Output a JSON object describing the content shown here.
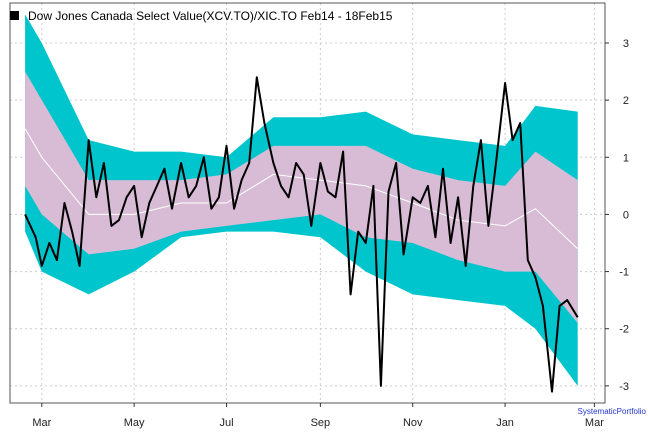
{
  "chart_data": {
    "type": "line",
    "title": "Dow Jones Canada Select Value(XCV.TO)/XIC.TO Feb14 - 18Feb15",
    "credit": "SystematicPortfolio",
    "x_tick_labels": [
      "Mar",
      "May",
      "Jul",
      "Sep",
      "Nov",
      "Jan",
      "Mar"
    ],
    "y_tick_labels": [
      "3",
      "2",
      "1",
      "0",
      "-1",
      "-2",
      "-3"
    ],
    "y_ticks": [
      3,
      2,
      1,
      0,
      -1,
      -2,
      -3
    ],
    "ylim": [
      -3.3,
      3.7
    ],
    "grid": true,
    "legend_position": "top-left",
    "colors": {
      "outer_band": "#00c5cd",
      "inner_band": "#d8bcd6",
      "mean_line": "#ffffff",
      "series_line": "#000000",
      "grid": "#cccccc"
    },
    "date_range": [
      "2014-02-18",
      "2015-02-18"
    ],
    "x_axis_range": [
      "2014-02-08",
      "2015-03-08"
    ],
    "x_tick_dates": [
      "2014-03-01",
      "2014-05-01",
      "2014-07-01",
      "2014-09-01",
      "2014-11-01",
      "2015-01-01",
      "2015-03-01"
    ],
    "series": [
      {
        "role": "z-score",
        "x": [
          "2014-02-18",
          "2014-02-25",
          "2014-03-01",
          "2014-03-06",
          "2014-03-11",
          "2014-03-16",
          "2014-03-21",
          "2014-03-26",
          "2014-04-01",
          "2014-04-06",
          "2014-04-11",
          "2014-04-16",
          "2014-04-21",
          "2014-04-26",
          "2014-05-01",
          "2014-05-06",
          "2014-05-11",
          "2014-05-16",
          "2014-05-21",
          "2014-05-26",
          "2014-06-01",
          "2014-06-06",
          "2014-06-11",
          "2014-06-16",
          "2014-06-21",
          "2014-06-26",
          "2014-07-01",
          "2014-07-06",
          "2014-07-11",
          "2014-07-16",
          "2014-07-21",
          "2014-07-26",
          "2014-08-01",
          "2014-08-06",
          "2014-08-11",
          "2014-08-16",
          "2014-08-21",
          "2014-08-26",
          "2014-09-01",
          "2014-09-06",
          "2014-09-11",
          "2014-09-16",
          "2014-09-21",
          "2014-09-26",
          "2014-10-01",
          "2014-10-06",
          "2014-10-11",
          "2014-10-16",
          "2014-10-21",
          "2014-10-26",
          "2014-11-01",
          "2014-11-06",
          "2014-11-11",
          "2014-11-16",
          "2014-11-21",
          "2014-11-26",
          "2014-12-01",
          "2014-12-06",
          "2014-12-11",
          "2014-12-16",
          "2014-12-21",
          "2014-12-26",
          "2015-01-01",
          "2015-01-06",
          "2015-01-11",
          "2015-01-16",
          "2015-01-21",
          "2015-01-26",
          "2015-02-01",
          "2015-02-06",
          "2015-02-11",
          "2015-02-18"
        ],
        "values": [
          0.0,
          -0.4,
          -0.9,
          -0.5,
          -0.8,
          0.2,
          -0.3,
          -0.9,
          1.3,
          0.3,
          0.9,
          -0.2,
          -0.1,
          0.3,
          0.5,
          -0.4,
          0.2,
          0.5,
          0.8,
          0.1,
          0.9,
          0.3,
          0.5,
          1.0,
          0.1,
          0.3,
          1.2,
          0.1,
          0.6,
          0.9,
          2.4,
          1.6,
          0.9,
          0.5,
          0.3,
          0.9,
          0.7,
          -0.2,
          0.9,
          0.4,
          0.3,
          1.1,
          -1.4,
          -0.3,
          -0.5,
          0.5,
          -3.0,
          0.4,
          0.9,
          -0.7,
          0.3,
          0.2,
          0.5,
          -0.4,
          0.8,
          -0.5,
          0.3,
          -0.9,
          0.5,
          1.3,
          -0.2,
          0.9,
          2.3,
          1.3,
          1.6,
          -0.8,
          -1.1,
          -1.6,
          -3.1,
          -1.6,
          -1.5,
          -1.8
        ]
      },
      {
        "role": "outer-upper",
        "x": [
          "2014-02-18",
          "2014-03-01",
          "2014-04-01",
          "2014-05-01",
          "2014-06-01",
          "2014-07-01",
          "2014-08-01",
          "2014-09-01",
          "2014-10-01",
          "2014-11-01",
          "2014-12-01",
          "2015-01-01",
          "2015-01-21",
          "2015-02-18"
        ],
        "values": [
          3.5,
          3.0,
          1.3,
          1.1,
          1.1,
          1.0,
          1.7,
          1.7,
          1.8,
          1.4,
          1.3,
          1.2,
          1.9,
          1.8
        ]
      },
      {
        "role": "inner-upper",
        "x": [
          "2014-02-18",
          "2014-03-01",
          "2014-04-01",
          "2014-05-01",
          "2014-06-01",
          "2014-07-01",
          "2014-08-01",
          "2014-09-01",
          "2014-10-01",
          "2014-11-01",
          "2014-12-01",
          "2015-01-01",
          "2015-01-21",
          "2015-02-18"
        ],
        "values": [
          2.5,
          2.0,
          0.6,
          0.6,
          0.6,
          0.7,
          1.2,
          1.2,
          1.2,
          0.8,
          0.6,
          0.5,
          1.1,
          0.6
        ]
      },
      {
        "role": "mean",
        "x": [
          "2014-02-18",
          "2014-03-01",
          "2014-04-01",
          "2014-05-01",
          "2014-06-01",
          "2014-07-01",
          "2014-08-01",
          "2014-09-01",
          "2014-10-01",
          "2014-11-01",
          "2014-12-01",
          "2015-01-01",
          "2015-01-21",
          "2015-02-18"
        ],
        "values": [
          1.5,
          1.0,
          0.0,
          0.0,
          0.2,
          0.2,
          0.7,
          0.6,
          0.5,
          0.2,
          -0.1,
          -0.2,
          0.1,
          -0.6
        ]
      },
      {
        "role": "inner-lower",
        "x": [
          "2014-02-18",
          "2014-03-01",
          "2014-04-01",
          "2014-05-01",
          "2014-06-01",
          "2014-07-01",
          "2014-08-01",
          "2014-09-01",
          "2014-10-01",
          "2014-11-01",
          "2014-12-01",
          "2015-01-01",
          "2015-01-21",
          "2015-02-18"
        ],
        "values": [
          0.5,
          0.0,
          -0.7,
          -0.6,
          -0.3,
          -0.2,
          -0.1,
          0.0,
          -0.4,
          -0.5,
          -0.8,
          -1.0,
          -1.0,
          -1.9
        ]
      },
      {
        "role": "outer-lower",
        "x": [
          "2014-02-18",
          "2014-03-01",
          "2014-04-01",
          "2014-05-01",
          "2014-06-01",
          "2014-07-01",
          "2014-08-01",
          "2014-09-01",
          "2014-10-01",
          "2014-11-01",
          "2014-12-01",
          "2015-01-01",
          "2015-01-21",
          "2015-02-18"
        ],
        "values": [
          -0.3,
          -1.0,
          -1.4,
          -1.0,
          -0.4,
          -0.3,
          -0.3,
          -0.4,
          -1.0,
          -1.4,
          -1.5,
          -1.6,
          -2.0,
          -3.0
        ]
      }
    ]
  }
}
